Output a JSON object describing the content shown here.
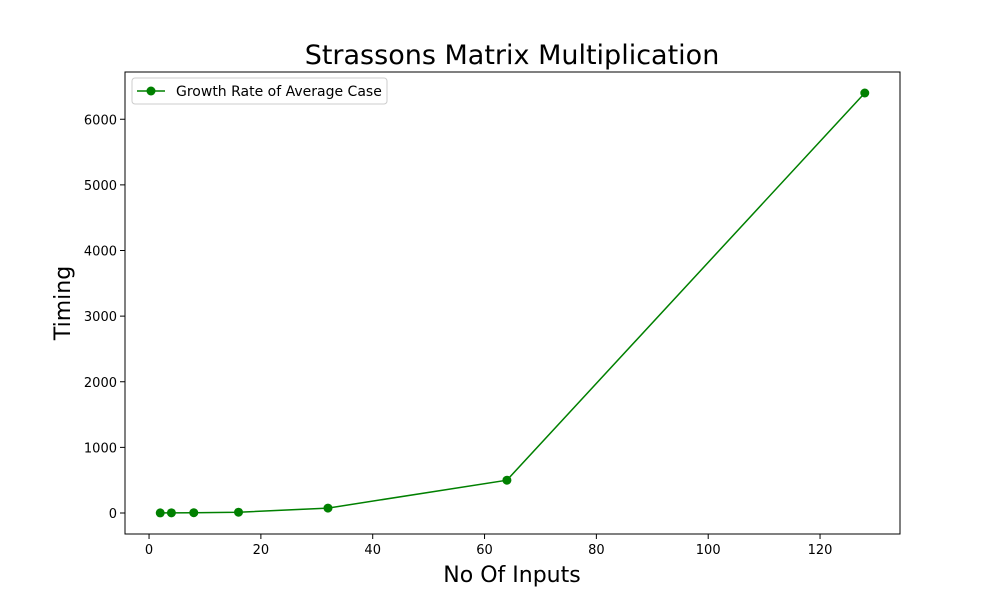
{
  "chart_data": {
    "type": "line",
    "title": "Strassons Matrix Multiplication",
    "xlabel": "No Of Inputs",
    "ylabel": "Timing",
    "xlim": [
      -4.3,
      134.3
    ],
    "ylim": [
      -320,
      6720
    ],
    "xticks": [
      0,
      20,
      40,
      60,
      80,
      100,
      120
    ],
    "yticks": [
      0,
      1000,
      2000,
      3000,
      4000,
      5000,
      6000
    ],
    "legend_position": "top-left",
    "series": [
      {
        "name": "Growth Rate of Average Case",
        "color": "#008000",
        "x": [
          2,
          4,
          8,
          16,
          32,
          64,
          128
        ],
        "y": [
          1,
          2,
          4,
          12,
          75,
          500,
          6400
        ]
      }
    ]
  }
}
